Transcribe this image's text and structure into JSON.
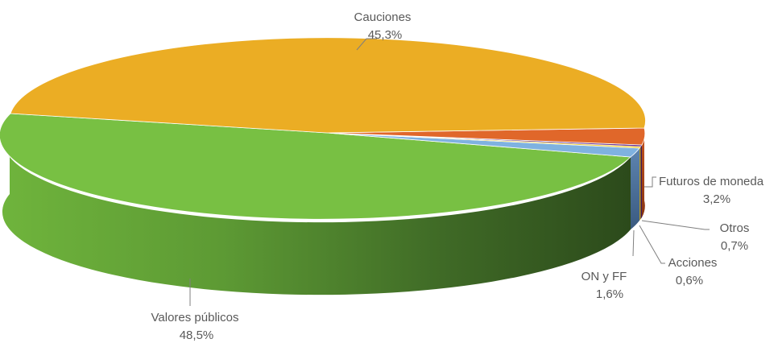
{
  "chart_data": {
    "type": "pie",
    "style": "3d",
    "slices": [
      {
        "name": "Valores públicos",
        "value": 48.5,
        "pct_label": "48,5%",
        "color": "#78c043"
      },
      {
        "name": "Cauciones",
        "value": 45.3,
        "pct_label": "45,3%",
        "color": "#ebad24"
      },
      {
        "name": "Futuros de moneda",
        "value": 3.2,
        "pct_label": "3,2%",
        "color": "#e0672a"
      },
      {
        "name": "Otros",
        "value": 0.7,
        "pct_label": "0,7%",
        "color": "#6a2f8f"
      },
      {
        "name": "Acciones",
        "value": 0.6,
        "pct_label": "0,6%",
        "color": "#f0d23c"
      },
      {
        "name": "ON y FF",
        "value": 1.6,
        "pct_label": "1,6%",
        "color": "#7fb2e0"
      }
    ]
  }
}
